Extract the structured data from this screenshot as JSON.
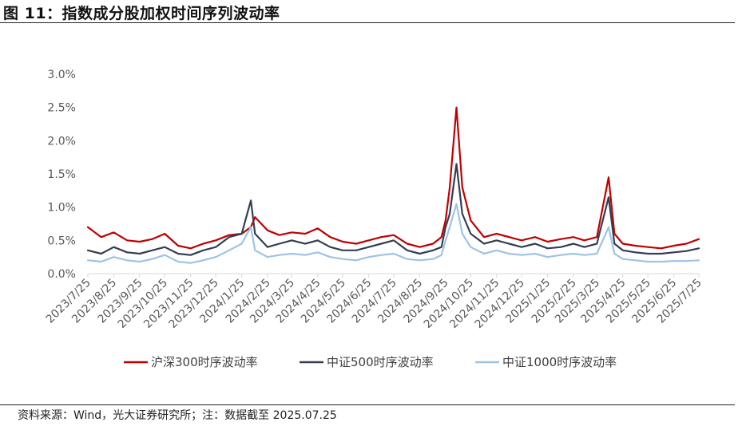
{
  "title": "图 11：指数成分股加权时间序列波动率",
  "source": "资料来源：Wind，光大证券研究所；注：数据截至 2025.07.25",
  "chart_data": {
    "type": "line",
    "y_ticks": [
      "0.0%",
      "0.5%",
      "1.0%",
      "1.5%",
      "2.0%",
      "2.5%",
      "3.0%"
    ],
    "ylim": [
      0,
      3.0
    ],
    "y_unit": "%",
    "grid": false,
    "legend_position": "bottom",
    "x_ticks": [
      "2023/7/25",
      "2023/8/25",
      "2023/9/25",
      "2023/10/25",
      "2023/11/25",
      "2023/12/25",
      "2024/1/25",
      "2024/2/25",
      "2024/3/25",
      "2024/4/25",
      "2024/5/25",
      "2024/6/25",
      "2024/7/25",
      "2024/8/25",
      "2024/9/25",
      "2024/10/25",
      "2024/11/25",
      "2024/12/25",
      "2025/1/25",
      "2025/2/25",
      "2025/3/25",
      "2025/4/25",
      "2025/5/25",
      "2025/6/25",
      "2025/7/25"
    ],
    "x": [
      "2023/7/25",
      "2023/8/10",
      "2023/8/25",
      "2023/9/10",
      "2023/9/25",
      "2023/10/10",
      "2023/10/25",
      "2023/11/10",
      "2023/11/25",
      "2023/12/10",
      "2023/12/25",
      "2024/1/10",
      "2024/1/25",
      "2024/2/5",
      "2024/2/10",
      "2024/2/25",
      "2024/3/10",
      "2024/3/25",
      "2024/4/10",
      "2024/4/25",
      "2024/5/10",
      "2024/5/25",
      "2024/6/10",
      "2024/6/25",
      "2024/7/10",
      "2024/7/25",
      "2024/8/10",
      "2024/8/25",
      "2024/9/10",
      "2024/9/20",
      "2024/9/25",
      "2024/9/30",
      "2024/10/8",
      "2024/10/15",
      "2024/10/25",
      "2024/11/10",
      "2024/11/25",
      "2024/12/10",
      "2024/12/25",
      "2025/1/10",
      "2025/1/25",
      "2025/2/10",
      "2025/2/25",
      "2025/3/10",
      "2025/3/25",
      "2025/4/8",
      "2025/4/15",
      "2025/4/25",
      "2025/5/10",
      "2025/5/25",
      "2025/6/10",
      "2025/6/25",
      "2025/7/10",
      "2025/7/25"
    ],
    "series": [
      {
        "name": "沪深300时序波动率",
        "color": "#c00000",
        "values": [
          0.7,
          0.55,
          0.62,
          0.5,
          0.48,
          0.52,
          0.6,
          0.42,
          0.38,
          0.45,
          0.5,
          0.58,
          0.6,
          0.7,
          0.85,
          0.65,
          0.58,
          0.62,
          0.6,
          0.68,
          0.55,
          0.48,
          0.45,
          0.5,
          0.55,
          0.58,
          0.45,
          0.4,
          0.45,
          0.55,
          0.8,
          1.3,
          2.5,
          1.3,
          0.8,
          0.55,
          0.6,
          0.55,
          0.5,
          0.55,
          0.48,
          0.52,
          0.55,
          0.5,
          0.55,
          1.45,
          0.6,
          0.45,
          0.42,
          0.4,
          0.38,
          0.42,
          0.45,
          0.52
        ]
      },
      {
        "name": "中证500时序波动率",
        "color": "#333f50",
        "values": [
          0.35,
          0.3,
          0.4,
          0.32,
          0.3,
          0.35,
          0.4,
          0.3,
          0.28,
          0.35,
          0.4,
          0.55,
          0.6,
          1.1,
          0.6,
          0.4,
          0.45,
          0.5,
          0.45,
          0.5,
          0.4,
          0.35,
          0.35,
          0.4,
          0.45,
          0.5,
          0.35,
          0.3,
          0.35,
          0.4,
          0.7,
          0.9,
          1.65,
          0.9,
          0.6,
          0.45,
          0.5,
          0.45,
          0.4,
          0.45,
          0.38,
          0.4,
          0.45,
          0.4,
          0.45,
          1.15,
          0.45,
          0.35,
          0.32,
          0.3,
          0.3,
          0.32,
          0.34,
          0.38
        ]
      },
      {
        "name": "中证1000时序波动率",
        "color": "#9dc3e6",
        "values": [
          0.2,
          0.18,
          0.25,
          0.2,
          0.18,
          0.22,
          0.28,
          0.18,
          0.16,
          0.2,
          0.25,
          0.35,
          0.45,
          0.7,
          0.35,
          0.25,
          0.28,
          0.3,
          0.28,
          0.32,
          0.25,
          0.22,
          0.2,
          0.25,
          0.28,
          0.3,
          0.22,
          0.2,
          0.22,
          0.28,
          0.5,
          0.7,
          1.05,
          0.6,
          0.4,
          0.3,
          0.35,
          0.3,
          0.28,
          0.3,
          0.25,
          0.28,
          0.3,
          0.28,
          0.3,
          0.7,
          0.3,
          0.22,
          0.2,
          0.18,
          0.18,
          0.19,
          0.19,
          0.2
        ]
      }
    ]
  }
}
